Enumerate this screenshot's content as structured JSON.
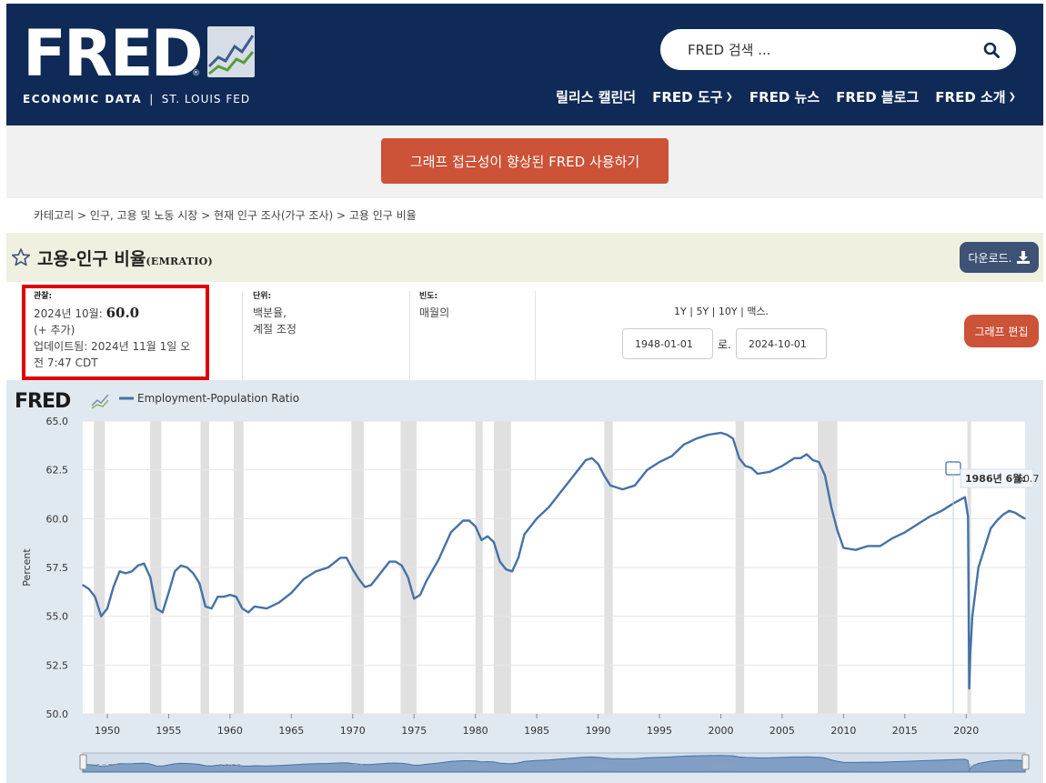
{
  "header": {
    "logo_text": "FRED",
    "logo_sub_left": "ECONOMIC DATA",
    "logo_sub_sep": "|",
    "logo_sub_right": "ST. LOUIS FED",
    "search_placeholder": "FRED 검색 ...",
    "nav": [
      {
        "label": "릴리스 캘린더",
        "dropdown": false
      },
      {
        "label": "FRED 도구",
        "dropdown": true
      },
      {
        "label": "FRED 뉴스",
        "dropdown": false
      },
      {
        "label": "FRED 블로그",
        "dropdown": false
      },
      {
        "label": "FRED 소개",
        "dropdown": true
      }
    ],
    "bg_color": "#0f2a57"
  },
  "banner": {
    "button_label": "그래프 접근성이 향상된 FRED 사용하기"
  },
  "breadcrumb": "카테고리 > 인구, 고용 및 노동 시장 > 현재 인구 조사(가구 조사) > 고용 인구 비율",
  "series": {
    "title": "고용-인구 비율",
    "code": "(EMRATIO)",
    "download_label": "다운로드.",
    "edit_graph_label": "그래프 편집"
  },
  "meta": {
    "observation_label": "관찰:",
    "observation_date": "2024년 10월:",
    "observation_value": "60.0",
    "observation_more": "(+ 추가)",
    "updated": "업데이트됨: 2024년 11월 1일 오전 7:47 CDT",
    "units_label": "단위:",
    "units_line1": "백분율,",
    "units_line2": "계절 조정",
    "freq_label": "빈도:",
    "freq_value": "매월의",
    "range_options": [
      "1Y",
      "5Y",
      "10Y",
      "맥스."
    ],
    "range_sep": "|",
    "date_from": "1948-01-01",
    "date_to_label": "로.",
    "date_to": "2024-10-01"
  },
  "chart_data": {
    "type": "line",
    "legend": "Employment-Population Ratio",
    "ylabel": "Percent",
    "ylim": [
      50.0,
      65.0
    ],
    "yticks": [
      "65.0",
      "62.5",
      "60.0",
      "57.5",
      "55.0",
      "52.5",
      "50.0"
    ],
    "xlim": [
      1948.0,
      2024.8
    ],
    "xticks": [
      "1950",
      "1955",
      "1960",
      "1965",
      "1970",
      "1975",
      "1980",
      "1985",
      "1990",
      "1995",
      "2000",
      "2005",
      "2010",
      "2015",
      "2020"
    ],
    "recessions": [
      [
        1948.9,
        1949.8
      ],
      [
        1953.5,
        1954.4
      ],
      [
        1957.6,
        1958.3
      ],
      [
        1960.3,
        1961.1
      ],
      [
        1969.9,
        1970.9
      ],
      [
        1973.9,
        1975.2
      ],
      [
        1980.0,
        1980.6
      ],
      [
        1981.5,
        1982.9
      ],
      [
        1990.5,
        1991.2
      ],
      [
        2001.2,
        2001.9
      ],
      [
        2007.9,
        2009.5
      ],
      [
        2020.1,
        2020.4
      ]
    ],
    "x": [
      1948.0,
      1948.5,
      1949.0,
      1949.5,
      1950.0,
      1950.5,
      1951.0,
      1951.5,
      1952.0,
      1952.5,
      1953.0,
      1953.5,
      1954.0,
      1954.5,
      1955.0,
      1955.5,
      1956.0,
      1956.5,
      1957.0,
      1957.5,
      1958.0,
      1958.5,
      1959.0,
      1959.5,
      1960.0,
      1960.5,
      1961.0,
      1961.5,
      1962.0,
      1963.0,
      1964.0,
      1965.0,
      1966.0,
      1967.0,
      1968.0,
      1969.0,
      1969.5,
      1970.0,
      1970.5,
      1971.0,
      1971.5,
      1972.0,
      1973.0,
      1973.5,
      1974.0,
      1974.5,
      1975.0,
      1975.5,
      1976.0,
      1977.0,
      1978.0,
      1979.0,
      1979.5,
      1980.0,
      1980.5,
      1981.0,
      1981.5,
      1982.0,
      1982.5,
      1983.0,
      1983.5,
      1984.0,
      1985.0,
      1986.0,
      1987.0,
      1988.0,
      1989.0,
      1989.5,
      1990.0,
      1990.5,
      1991.0,
      1991.5,
      1992.0,
      1993.0,
      1994.0,
      1995.0,
      1996.0,
      1997.0,
      1998.0,
      1999.0,
      2000.0,
      2000.5,
      2001.0,
      2001.5,
      2002.0,
      2002.5,
      2003.0,
      2004.0,
      2005.0,
      2006.0,
      2006.5,
      2007.0,
      2007.5,
      2008.0,
      2008.5,
      2009.0,
      2009.5,
      2010.0,
      2011.0,
      2012.0,
      2013.0,
      2014.0,
      2015.0,
      2016.0,
      2017.0,
      2018.0,
      2019.0,
      2019.9,
      2020.15,
      2020.25,
      2020.33,
      2020.5,
      2021.0,
      2021.5,
      2022.0,
      2022.5,
      2023.0,
      2023.5,
      2024.0,
      2024.5,
      2024.8
    ],
    "y": [
      56.6,
      56.4,
      56.0,
      55.0,
      55.4,
      56.5,
      57.3,
      57.2,
      57.3,
      57.6,
      57.7,
      57.0,
      55.4,
      55.2,
      56.2,
      57.3,
      57.6,
      57.5,
      57.2,
      56.7,
      55.5,
      55.4,
      56.0,
      56.0,
      56.1,
      56.0,
      55.4,
      55.2,
      55.5,
      55.4,
      55.7,
      56.2,
      56.9,
      57.3,
      57.5,
      58.0,
      58.0,
      57.4,
      56.9,
      56.5,
      56.6,
      57.0,
      57.8,
      57.8,
      57.6,
      57.0,
      55.9,
      56.1,
      56.8,
      57.9,
      59.3,
      59.9,
      59.9,
      59.6,
      58.9,
      59.1,
      58.8,
      57.8,
      57.4,
      57.3,
      58.0,
      59.2,
      60.0,
      60.6,
      61.4,
      62.2,
      63.0,
      63.1,
      62.8,
      62.2,
      61.7,
      61.6,
      61.5,
      61.7,
      62.5,
      62.9,
      63.2,
      63.8,
      64.1,
      64.3,
      64.4,
      64.3,
      64.1,
      63.1,
      62.7,
      62.6,
      62.3,
      62.4,
      62.7,
      63.1,
      63.1,
      63.3,
      63.0,
      62.9,
      62.2,
      60.6,
      59.4,
      58.5,
      58.4,
      58.6,
      58.6,
      59.0,
      59.3,
      59.7,
      60.1,
      60.4,
      60.8,
      61.1,
      60.1,
      51.3,
      53.0,
      55.0,
      57.5,
      58.5,
      59.5,
      59.9,
      60.2,
      60.4,
      60.3,
      60.1,
      60.0
    ]
  },
  "tooltip": {
    "label": "1986년 6월:",
    "value": "60.7"
  },
  "slider_years": [
    "1950",
    "1960",
    "1970",
    "1980",
    "1990",
    "2000",
    "2010",
    "2020"
  ]
}
